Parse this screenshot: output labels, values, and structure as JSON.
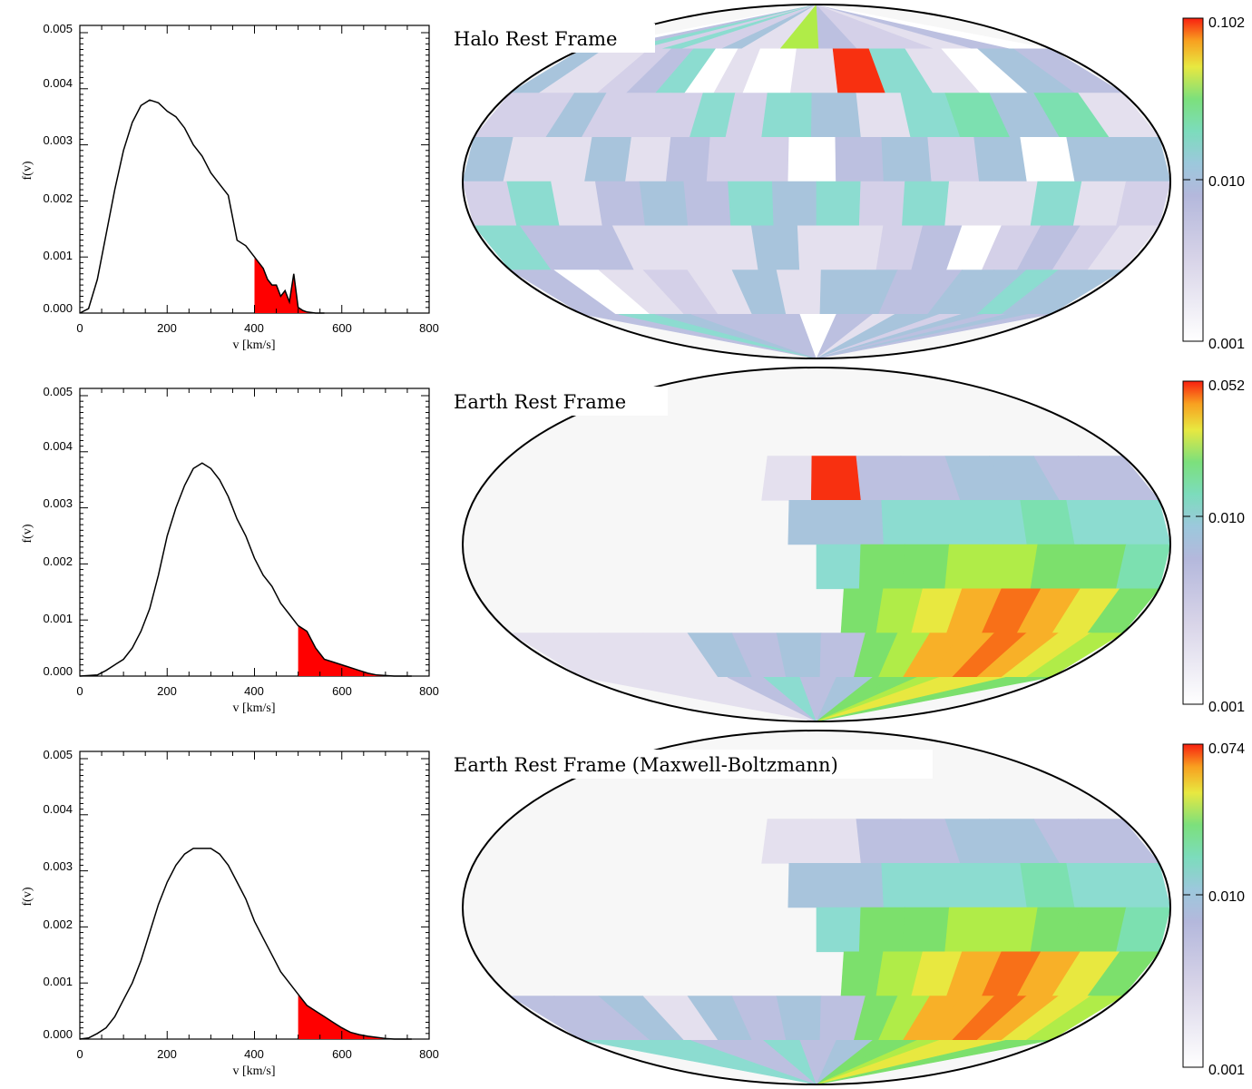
{
  "chart_data": [
    {
      "type": "area",
      "xlabel": "v [km/s]",
      "ylabel": "f(v)",
      "xlim": [
        0,
        800
      ],
      "ylim": [
        0,
        0.005
      ],
      "xticks": [
        "0",
        "200",
        "400",
        "600",
        "800"
      ],
      "yticks": [
        "0.000",
        "0.001",
        "0.002",
        "0.003",
        "0.004",
        "0.005"
      ],
      "shade_from": 400,
      "x": [
        0,
        20,
        40,
        60,
        80,
        100,
        120,
        140,
        160,
        180,
        200,
        220,
        240,
        260,
        280,
        300,
        320,
        340,
        360,
        380,
        400,
        410,
        420,
        430,
        440,
        450,
        460,
        470,
        480,
        490,
        500,
        510,
        520,
        540,
        560
      ],
      "y": [
        0.0,
        8e-05,
        0.0006,
        0.0014,
        0.0022,
        0.0029,
        0.0034,
        0.0037,
        0.0038,
        0.00375,
        0.0036,
        0.0035,
        0.0033,
        0.003,
        0.0028,
        0.0025,
        0.0023,
        0.0021,
        0.0013,
        0.0012,
        0.001,
        0.0009,
        0.0008,
        0.0006,
        0.0005,
        0.0005,
        0.0003,
        0.0004,
        0.0002,
        0.0007,
        0.0001,
        5e-05,
        2e-05,
        0.0,
        0.0
      ]
    },
    {
      "type": "area",
      "xlabel": "v [km/s]",
      "ylabel": "f(v)",
      "xlim": [
        0,
        800
      ],
      "ylim": [
        0,
        0.005
      ],
      "xticks": [
        "0",
        "200",
        "400",
        "600",
        "800"
      ],
      "yticks": [
        "0.000",
        "0.001",
        "0.002",
        "0.003",
        "0.004",
        "0.005"
      ],
      "shade_from": 500,
      "x": [
        0,
        40,
        60,
        80,
        100,
        120,
        140,
        160,
        180,
        200,
        220,
        240,
        260,
        280,
        300,
        320,
        340,
        360,
        380,
        400,
        420,
        440,
        460,
        480,
        500,
        520,
        540,
        560,
        580,
        600,
        620,
        640,
        660,
        680,
        700,
        720,
        760
      ],
      "y": [
        0.0,
        2e-05,
        0.0001,
        0.0002,
        0.0003,
        0.0005,
        0.0008,
        0.0012,
        0.0018,
        0.0025,
        0.003,
        0.0034,
        0.0037,
        0.0038,
        0.0037,
        0.0035,
        0.0032,
        0.0028,
        0.0025,
        0.0021,
        0.0018,
        0.0016,
        0.0013,
        0.0011,
        0.0009,
        0.0008,
        0.0005,
        0.0003,
        0.00025,
        0.0002,
        0.00015,
        0.0001,
        5e-05,
        2e-05,
        1e-05,
        0.0,
        0.0
      ]
    },
    {
      "type": "area",
      "xlabel": "v [km/s]",
      "ylabel": "f(v)",
      "xlim": [
        0,
        800
      ],
      "ylim": [
        0,
        0.005
      ],
      "xticks": [
        "0",
        "200",
        "400",
        "600",
        "800"
      ],
      "yticks": [
        "0.000",
        "0.001",
        "0.002",
        "0.003",
        "0.004",
        "0.005"
      ],
      "shade_from": 500,
      "x": [
        0,
        20,
        40,
        60,
        80,
        100,
        120,
        140,
        160,
        180,
        200,
        220,
        240,
        260,
        280,
        300,
        320,
        340,
        360,
        380,
        400,
        420,
        440,
        460,
        480,
        500,
        520,
        540,
        560,
        580,
        600,
        620,
        640,
        660,
        680,
        700,
        720,
        760
      ],
      "y": [
        0.0,
        2e-05,
        0.0001,
        0.0002,
        0.0004,
        0.0007,
        0.001,
        0.0014,
        0.0019,
        0.0024,
        0.0028,
        0.0031,
        0.0033,
        0.0034,
        0.0034,
        0.0034,
        0.0033,
        0.0031,
        0.0028,
        0.0025,
        0.0021,
        0.0018,
        0.0015,
        0.0012,
        0.001,
        0.0008,
        0.0006,
        0.0005,
        0.0004,
        0.0003,
        0.0002,
        0.00012,
        8e-05,
        5e-05,
        3e-05,
        1e-05,
        0.0,
        0.0
      ]
    },
    {
      "type": "heatmap",
      "projection": "mollweide",
      "title": "Halo Rest Frame",
      "colorbar": {
        "scale": "log",
        "min_label": "0.001",
        "mid_label": "0.010",
        "max_label": "0.102"
      },
      "pattern": "all-sky"
    },
    {
      "type": "heatmap",
      "projection": "mollweide",
      "title": "Earth Rest Frame",
      "colorbar": {
        "scale": "log",
        "min_label": "0.001",
        "mid_label": "0.010",
        "max_label": "0.052"
      },
      "pattern": "lower-right"
    },
    {
      "type": "heatmap",
      "projection": "mollweide",
      "title": "Earth Rest Frame (Maxwell-Boltzmann)",
      "colorbar": {
        "scale": "log",
        "min_label": "0.001",
        "mid_label": "0.010",
        "max_label": "0.074"
      },
      "pattern": "lower-right-smooth"
    }
  ]
}
